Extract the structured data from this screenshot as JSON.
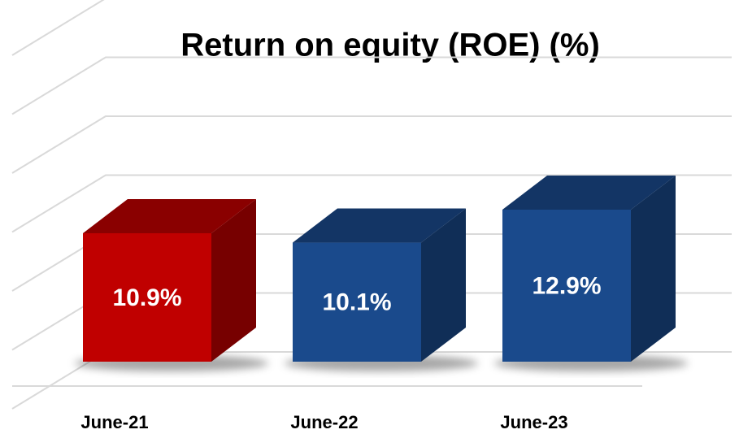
{
  "chart_data": {
    "type": "bar3d",
    "title": "Return on equity (ROE) (%)",
    "categories": [
      "June-21",
      "June-22",
      "June-23"
    ],
    "values": [
      10.9,
      10.1,
      12.9
    ],
    "value_labels": [
      "10.9%",
      "10.1%",
      "12.9%"
    ],
    "colors": [
      "#c00000",
      "#1a4a8c",
      "#1a4a8c"
    ],
    "ylim": [
      0,
      30
    ],
    "yticks": [
      0,
      5,
      10,
      15,
      20,
      25,
      30
    ],
    "grid": true
  }
}
